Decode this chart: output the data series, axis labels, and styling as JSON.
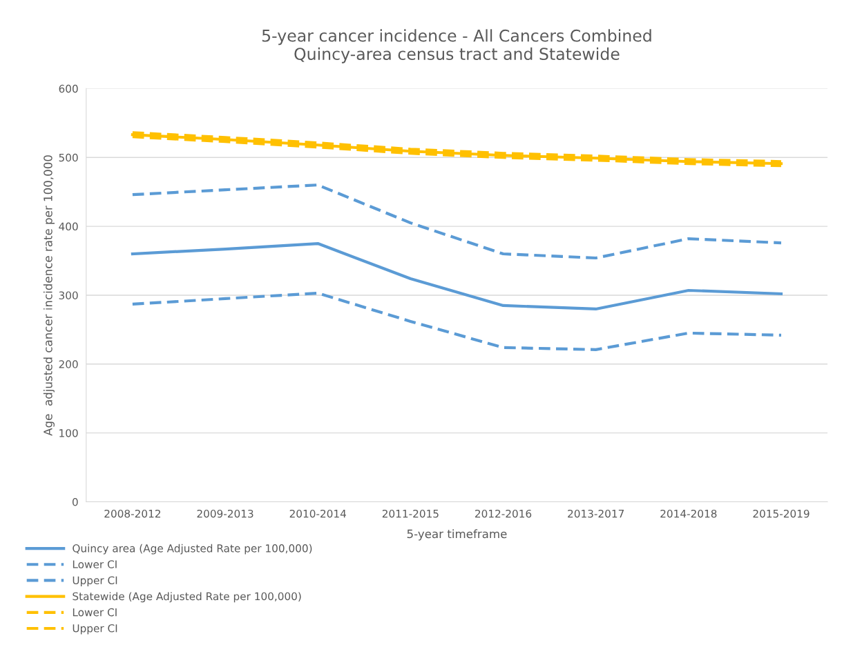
{
  "chart_data": {
    "type": "line",
    "title": "5-year cancer incidence - All Cancers Combined\nQuincy-area census tract and Statewide",
    "xlabel": "5-year timeframe",
    "ylabel": "Age  adjusted cancer incidence rate per 100,000",
    "categories": [
      "2008-2012",
      "2009-2013",
      "2010-2014",
      "2011-2015",
      "2012-2016",
      "2013-2017",
      "2014-2018",
      "2015-2019"
    ],
    "ylim": [
      0,
      600
    ],
    "yticks": [
      0,
      100,
      200,
      300,
      400,
      500,
      600
    ],
    "grid": "y",
    "legend": "bottom",
    "marker": "none",
    "series": [
      {
        "name": "Quincy area (Age Adjusted Rate per 100,000)",
        "color": "#5b9bd5",
        "line_style": "solid",
        "values": [
          360,
          367,
          375,
          324,
          285,
          280,
          307,
          302
        ]
      },
      {
        "name": "Lower CI",
        "color": "#5b9bd5",
        "line_style": "dashed",
        "values": [
          287,
          295,
          303,
          262,
          224,
          221,
          245,
          242
        ]
      },
      {
        "name": "Upper CI",
        "color": "#5b9bd5",
        "line_style": "dashed",
        "values": [
          446,
          453,
          460,
          405,
          360,
          354,
          382,
          376
        ]
      },
      {
        "name": "Statewide (Age Adjusted Rate per 100,000)",
        "color": "#ffc000",
        "line_style": "solid",
        "values": [
          533,
          526,
          518,
          509,
          503,
          499,
          494,
          491
        ]
      },
      {
        "name": "Lower CI",
        "color": "#ffc000",
        "line_style": "dashed",
        "values": [
          530,
          523,
          515,
          506,
          500,
          496,
          491,
          488
        ]
      },
      {
        "name": "Upper CI",
        "color": "#ffc000",
        "line_style": "dashed",
        "values": [
          536,
          529,
          521,
          512,
          506,
          502,
          497,
          494
        ]
      }
    ]
  }
}
